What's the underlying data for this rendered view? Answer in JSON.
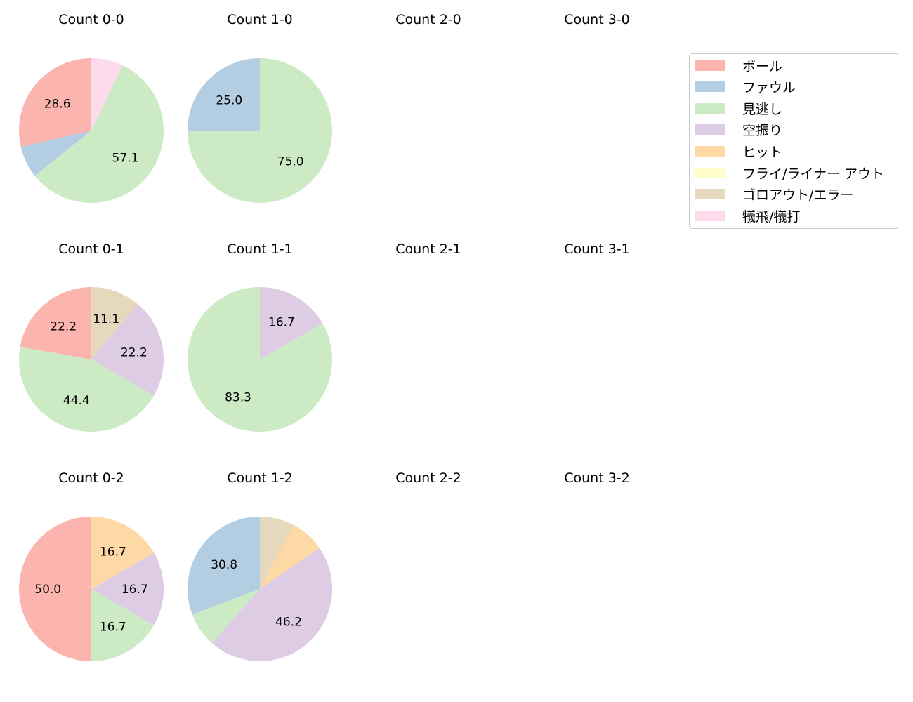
{
  "chart_data": {
    "type": "pie",
    "title": "",
    "legend": {
      "position": "upper right",
      "entries": [
        "ボール",
        "ファウル",
        "見逃し",
        "空振り",
        "ヒット",
        "フライ/ライナー アウト",
        "ゴロアウト/エラー",
        "犠飛/犠打"
      ]
    },
    "colors": {
      "ボール": "#fbb4ae",
      "ファウル": "#b3cde3",
      "見逃し": "#ccebc5",
      "空振り": "#decbe4",
      "ヒット": "#fed9a6",
      "フライ/ライナー アウト": "#ffffcc",
      "ゴロアウト/エラー": "#e5d8bd",
      "犠飛/犠打": "#fddaec"
    },
    "charts": [
      {
        "title": "Count 0-0",
        "row": 0,
        "col": 0,
        "slices": [
          {
            "label": "ボール",
            "value": 28.6,
            "shown": "28.6"
          },
          {
            "label": "ファウル",
            "value": 7.1,
            "shown": ""
          },
          {
            "label": "見逃し",
            "value": 57.1,
            "shown": "57.1"
          },
          {
            "label": "犠飛/犠打",
            "value": 7.1,
            "shown": ""
          }
        ]
      },
      {
        "title": "Count 1-0",
        "row": 0,
        "col": 1,
        "slices": [
          {
            "label": "ファウル",
            "value": 25.0,
            "shown": "25.0"
          },
          {
            "label": "見逃し",
            "value": 75.0,
            "shown": "75.0"
          }
        ]
      },
      {
        "title": "Count 2-0",
        "row": 0,
        "col": 2,
        "slices": []
      },
      {
        "title": "Count 3-0",
        "row": 0,
        "col": 3,
        "slices": []
      },
      {
        "title": "Count 0-1",
        "row": 1,
        "col": 0,
        "slices": [
          {
            "label": "ボール",
            "value": 22.2,
            "shown": "22.2"
          },
          {
            "label": "見逃し",
            "value": 44.4,
            "shown": "44.4"
          },
          {
            "label": "空振り",
            "value": 22.2,
            "shown": "22.2"
          },
          {
            "label": "ゴロアウト/エラー",
            "value": 11.1,
            "shown": "11.1"
          }
        ]
      },
      {
        "title": "Count 1-1",
        "row": 1,
        "col": 1,
        "slices": [
          {
            "label": "見逃し",
            "value": 83.3,
            "shown": "83.3"
          },
          {
            "label": "空振り",
            "value": 16.7,
            "shown": "16.7"
          }
        ]
      },
      {
        "title": "Count 2-1",
        "row": 1,
        "col": 2,
        "slices": []
      },
      {
        "title": "Count 3-1",
        "row": 1,
        "col": 3,
        "slices": []
      },
      {
        "title": "Count 0-2",
        "row": 2,
        "col": 0,
        "slices": [
          {
            "label": "ボール",
            "value": 50.0,
            "shown": "50.0"
          },
          {
            "label": "見逃し",
            "value": 16.7,
            "shown": "16.7"
          },
          {
            "label": "空振り",
            "value": 16.7,
            "shown": "16.7"
          },
          {
            "label": "ヒット",
            "value": 16.7,
            "shown": "16.7"
          }
        ]
      },
      {
        "title": "Count 1-2",
        "row": 2,
        "col": 1,
        "slices": [
          {
            "label": "ファウル",
            "value": 30.8,
            "shown": "30.8"
          },
          {
            "label": "見逃し",
            "value": 7.7,
            "shown": ""
          },
          {
            "label": "空振り",
            "value": 46.2,
            "shown": "46.2"
          },
          {
            "label": "ヒット",
            "value": 7.7,
            "shown": ""
          },
          {
            "label": "ゴロアウト/エラー",
            "value": 7.7,
            "shown": ""
          }
        ]
      },
      {
        "title": "Count 2-2",
        "row": 2,
        "col": 2,
        "slices": []
      },
      {
        "title": "Count 3-2",
        "row": 2,
        "col": 3,
        "slices": []
      }
    ]
  }
}
